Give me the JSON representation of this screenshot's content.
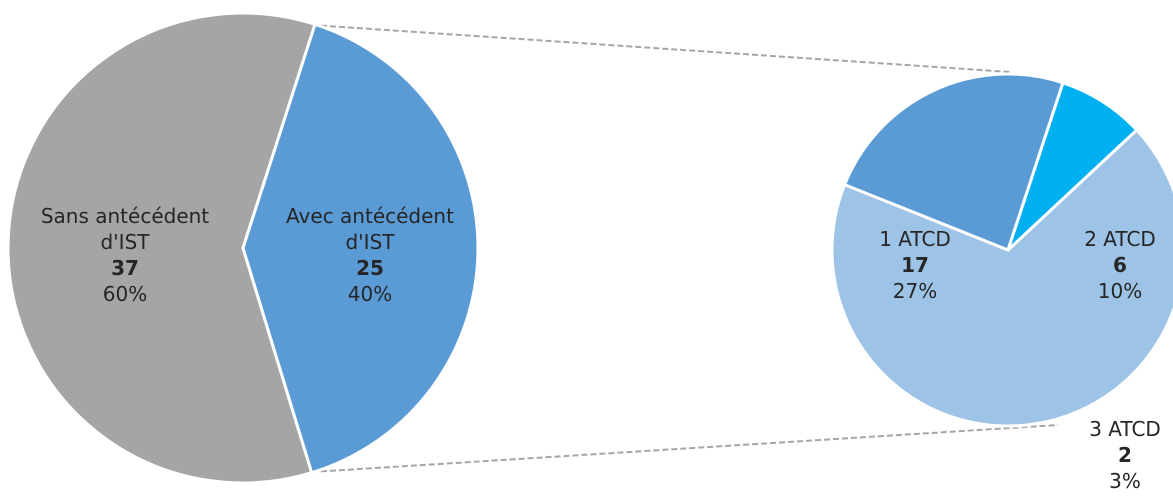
{
  "chart_data": [
    {
      "type": "pie",
      "categories": [
        "Sans antécédent d'IST",
        "Avec antécédent d'IST"
      ],
      "values": [
        37,
        25
      ],
      "percent_labels": [
        "60%",
        "40%"
      ],
      "colors": [
        "#a5a5a5",
        "#5b9bd5"
      ]
    },
    {
      "type": "pie",
      "categories": [
        "1 ATCD",
        "2 ATCD",
        "3 ATCD"
      ],
      "values": [
        17,
        6,
        2
      ],
      "percent_labels": [
        "27%",
        "10%",
        "3%"
      ],
      "colors": [
        "#9dc3e6",
        "#5b9bd5",
        "#00b0f0"
      ]
    }
  ]
}
